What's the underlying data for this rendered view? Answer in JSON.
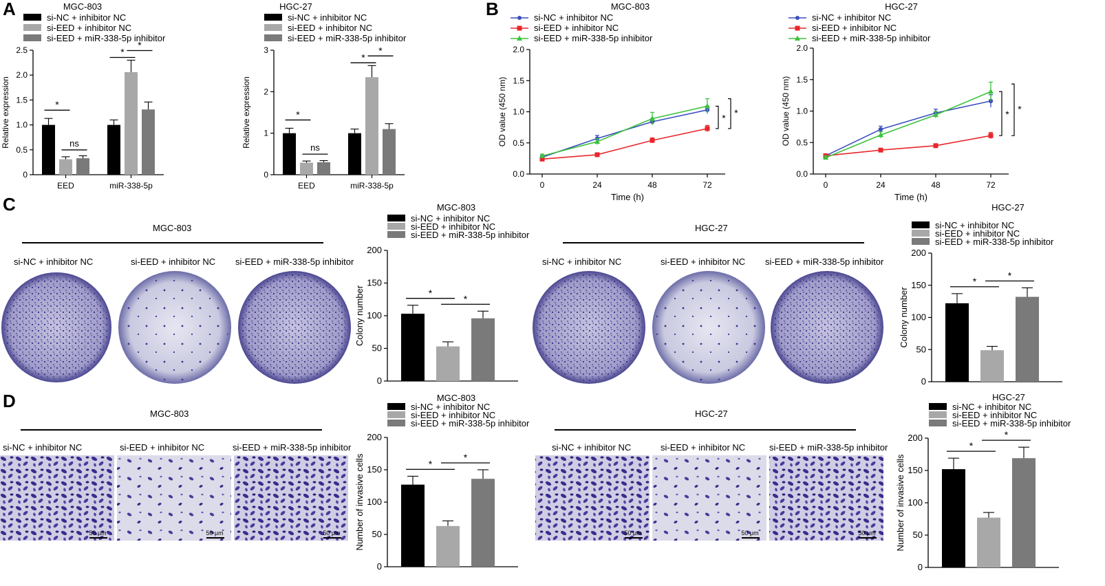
{
  "panels": {
    "A": "A",
    "B": "B",
    "C": "C",
    "D": "D"
  },
  "colors": {
    "black": "#000000",
    "light_gray": "#a8a8a8",
    "dark_gray": "#7a7a7a",
    "blue": "#3a4fbf",
    "red": "#e8262b",
    "green": "#3cc23c",
    "crystal_violet": "#5a4aa8"
  },
  "legend": {
    "s1": "si-NC + inhibitor NC",
    "s2": "si-EED + inhibitor NC",
    "s3": "si-EED + miR-338-5p inhibitor"
  },
  "image_panels": {
    "C": {
      "groups": [
        {
          "cell_line": "MGC-803",
          "labels": [
            "si-NC + inhibitor NC",
            "si-EED + inhibitor NC",
            "si-EED + miR-338-5p inhibitor"
          ]
        },
        {
          "cell_line": "HGC-27",
          "labels": [
            "si-NC + inhibitor NC",
            "si-EED + inhibitor NC",
            "si-EED + miR-338-5p inhibitor"
          ]
        }
      ]
    },
    "D": {
      "groups": [
        {
          "cell_line": "MGC-803",
          "labels": [
            "si-NC + inhibitor NC",
            "si-EED + inhibitor NC",
            "si-EED + miR-338-5p inhibitor"
          ]
        },
        {
          "cell_line": "HGC-27",
          "labels": [
            "si-NC + inhibitor NC",
            "si-EED + inhibitor NC",
            "si-EED + miR-338-5p inhibitor"
          ]
        }
      ],
      "scale_bar": "50 μm"
    }
  },
  "chart_data": [
    {
      "id": "A1",
      "type": "bar",
      "title": "MGC-803",
      "ylabel": "Relative expression",
      "categories": [
        "EED",
        "miR-338-5p"
      ],
      "ylim": [
        0,
        2.5
      ],
      "yticks": [
        0,
        0.5,
        1.0,
        1.5,
        2.0,
        2.5
      ],
      "ytick_labels": [
        "0",
        "0.5",
        "1.0",
        "1.5",
        "2.0",
        "2.5"
      ],
      "series": [
        {
          "name": "si-NC + inhibitor NC",
          "values": [
            1.0,
            1.0
          ],
          "errors": [
            0.13,
            0.1
          ]
        },
        {
          "name": "si-EED + inhibitor NC",
          "values": [
            0.31,
            2.06
          ],
          "errors": [
            0.05,
            0.24
          ]
        },
        {
          "name": "si-EED + miR-338-5p inhibitor",
          "values": [
            0.33,
            1.31
          ],
          "errors": [
            0.05,
            0.15
          ]
        }
      ],
      "annotations": [
        {
          "group": 0,
          "from": 0,
          "to": 1,
          "text": "*"
        },
        {
          "group": 0,
          "from": 1,
          "to": 2,
          "text": "ns"
        },
        {
          "group": 1,
          "from": 0,
          "to": 1,
          "text": "*"
        },
        {
          "group": 1,
          "from": 1,
          "to": 2,
          "text": "*"
        }
      ]
    },
    {
      "id": "A2",
      "type": "bar",
      "title": "HGC-27",
      "ylabel": "Relative expression",
      "categories": [
        "EED",
        "miR-338-5p"
      ],
      "ylim": [
        0,
        3
      ],
      "yticks": [
        0,
        1,
        2,
        3
      ],
      "ytick_labels": [
        "0",
        "1",
        "2",
        "3"
      ],
      "series": [
        {
          "name": "si-NC + inhibitor NC",
          "values": [
            1.0,
            1.0
          ],
          "errors": [
            0.12,
            0.1
          ]
        },
        {
          "name": "si-EED + inhibitor NC",
          "values": [
            0.29,
            2.35
          ],
          "errors": [
            0.04,
            0.28
          ]
        },
        {
          "name": "si-EED + miR-338-5p inhibitor",
          "values": [
            0.3,
            1.1
          ],
          "errors": [
            0.04,
            0.13
          ]
        }
      ],
      "annotations": [
        {
          "group": 0,
          "from": 0,
          "to": 1,
          "text": "*"
        },
        {
          "group": 0,
          "from": 1,
          "to": 2,
          "text": "ns"
        },
        {
          "group": 1,
          "from": 0,
          "to": 1,
          "text": "*"
        },
        {
          "group": 1,
          "from": 1,
          "to": 2,
          "text": "*"
        }
      ]
    },
    {
      "id": "B1",
      "type": "line",
      "title": "MGC-803",
      "xlabel": "Time (h)",
      "ylabel": "OD value (450 nm)",
      "x": [
        0,
        24,
        48,
        72
      ],
      "ylim": [
        0,
        2.0
      ],
      "yticks": [
        0,
        0.5,
        1.0,
        1.5,
        2.0
      ],
      "ytick_labels": [
        "0.0",
        "0.5",
        "1.0",
        "1.5",
        "2.0"
      ],
      "series": [
        {
          "name": "si-NC + inhibitor NC",
          "values": [
            0.27,
            0.57,
            0.84,
            1.03
          ],
          "errors": [
            0.03,
            0.05,
            0.05,
            0.06
          ]
        },
        {
          "name": "si-EED + inhibitor NC",
          "values": [
            0.24,
            0.31,
            0.54,
            0.73
          ],
          "errors": [
            0.02,
            0.03,
            0.04,
            0.05
          ]
        },
        {
          "name": "si-EED + miR-338-5p inhibitor",
          "values": [
            0.29,
            0.52,
            0.89,
            1.09
          ],
          "errors": [
            0.03,
            0.05,
            0.1,
            0.12
          ]
        }
      ],
      "annotations": [
        "*",
        "*"
      ]
    },
    {
      "id": "B2",
      "type": "line",
      "title": "HGC-27",
      "xlabel": "Time (h)",
      "ylabel": "OD value (450 nm)",
      "x": [
        0,
        24,
        48,
        72
      ],
      "ylim": [
        0,
        2.0
      ],
      "yticks": [
        0,
        0.5,
        1.0,
        1.5,
        2.0
      ],
      "ytick_labels": [
        "0.0",
        "0.5",
        "1.0",
        "1.5",
        "2.0"
      ],
      "series": [
        {
          "name": "si-NC + inhibitor NC",
          "values": [
            0.29,
            0.71,
            0.97,
            1.16
          ],
          "errors": [
            0.03,
            0.05,
            0.06,
            0.1
          ]
        },
        {
          "name": "si-EED + inhibitor NC",
          "values": [
            0.29,
            0.38,
            0.45,
            0.61
          ],
          "errors": [
            0.02,
            0.02,
            0.03,
            0.05
          ]
        },
        {
          "name": "si-EED + miR-338-5p inhibitor",
          "values": [
            0.26,
            0.62,
            0.94,
            1.31
          ],
          "errors": [
            0.03,
            0.05,
            0.05,
            0.15
          ]
        }
      ],
      "annotations": [
        "*",
        "*"
      ]
    },
    {
      "id": "C1",
      "type": "bar",
      "title": "MGC-803",
      "ylabel": "Colony number",
      "categories": [
        "si-NC + inhibitor NC",
        "si-EED + inhibitor NC",
        "si-EED + miR-338-5p inhibitor"
      ],
      "values": [
        103,
        53,
        96
      ],
      "errors": [
        13,
        7,
        11
      ],
      "ylim": [
        0,
        200
      ],
      "yticks": [
        0,
        50,
        100,
        150,
        200
      ],
      "ytick_labels": [
        "0",
        "50",
        "100",
        "150",
        "200"
      ],
      "annotations": [
        {
          "from": 0,
          "to": 1,
          "text": "*"
        },
        {
          "from": 1,
          "to": 2,
          "text": "*"
        }
      ]
    },
    {
      "id": "C2",
      "type": "bar",
      "title": "HGC-27",
      "ylabel": "Colony number",
      "categories": [
        "si-NC + inhibitor NC",
        "si-EED + inhibitor NC",
        "si-EED + miR-338-5p inhibitor"
      ],
      "values": [
        122,
        49,
        132
      ],
      "errors": [
        15,
        6,
        14
      ],
      "ylim": [
        0,
        200
      ],
      "yticks": [
        0,
        50,
        100,
        150,
        200
      ],
      "ytick_labels": [
        "0",
        "50",
        "100",
        "150",
        "200"
      ],
      "annotations": [
        {
          "from": 0,
          "to": 1,
          "text": "*"
        },
        {
          "from": 1,
          "to": 2,
          "text": "*"
        }
      ]
    },
    {
      "id": "D1",
      "type": "bar",
      "title": "MGC-803",
      "ylabel": "Number of invasive cells",
      "categories": [
        "si-NC + inhibitor NC",
        "si-EED + inhibitor NC",
        "si-EED + miR-338-5p inhibitor"
      ],
      "values": [
        127,
        63,
        136
      ],
      "errors": [
        13,
        8,
        14
      ],
      "ylim": [
        0,
        200
      ],
      "yticks": [
        0,
        50,
        100,
        150,
        200
      ],
      "ytick_labels": [
        "0",
        "50",
        "100",
        "150",
        "200"
      ],
      "annotations": [
        {
          "from": 0,
          "to": 1,
          "text": "*"
        },
        {
          "from": 1,
          "to": 2,
          "text": "*"
        }
      ]
    },
    {
      "id": "D2",
      "type": "bar",
      "title": "HGC-27",
      "ylabel": "Number of invasive cells",
      "categories": [
        "si-NC + inhibitor NC",
        "si-EED + inhibitor NC",
        "si-EED + miR-338-5p inhibitor"
      ],
      "values": [
        152,
        77,
        169
      ],
      "errors": [
        17,
        8,
        17
      ],
      "ylim": [
        0,
        200
      ],
      "yticks": [
        0,
        50,
        100,
        150,
        200
      ],
      "ytick_labels": [
        "0",
        "50",
        "100",
        "150",
        "200"
      ],
      "annotations": [
        {
          "from": 0,
          "to": 1,
          "text": "*"
        },
        {
          "from": 1,
          "to": 2,
          "text": "*"
        }
      ]
    }
  ]
}
